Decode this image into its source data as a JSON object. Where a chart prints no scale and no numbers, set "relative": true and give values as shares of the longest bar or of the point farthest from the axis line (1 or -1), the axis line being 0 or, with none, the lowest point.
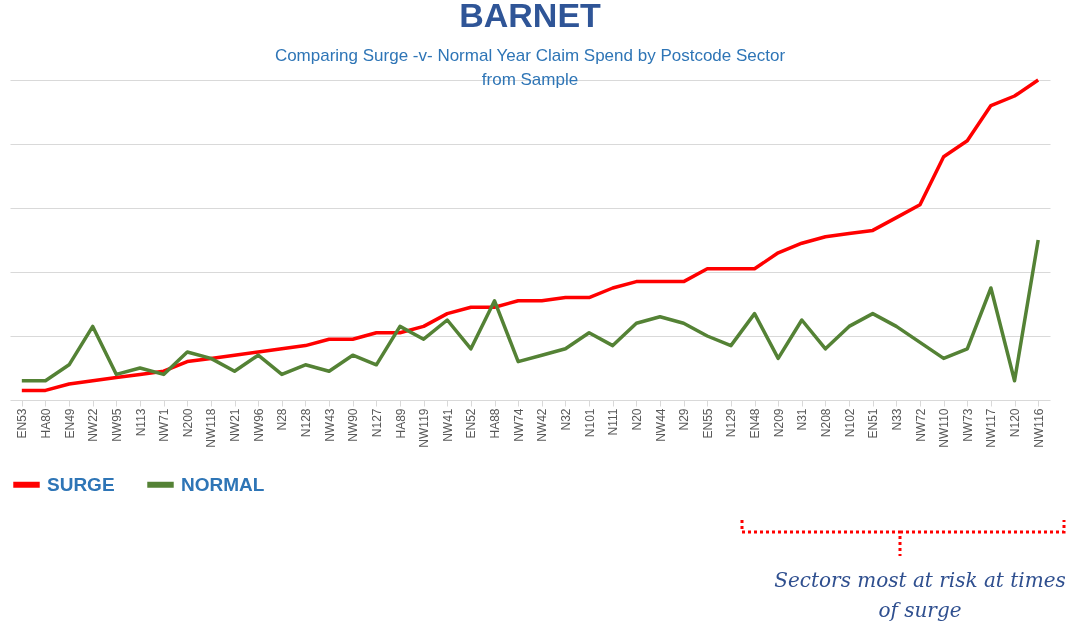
{
  "chart_data": {
    "type": "line",
    "title": "BARNET",
    "subtitle": "Comparing Surge -v- Normal Year Claim Spend by Postcode Sector from Sample",
    "relative": true,
    "grid": "y",
    "legend": "bottom",
    "line_style": "solid",
    "marker": "none",
    "categories": [
      "EN53",
      "HA80",
      "EN49",
      "NW22",
      "NW95",
      "N113",
      "NW71",
      "N200",
      "NW118",
      "NW21",
      "NW96",
      "N28",
      "N128",
      "NW43",
      "NW90",
      "N127",
      "HA89",
      "NW119",
      "NW41",
      "EN52",
      "HA88",
      "NW74",
      "NW42",
      "N32",
      "N101",
      "N111",
      "N20",
      "NW44",
      "N29",
      "EN55",
      "N129",
      "EN48",
      "N209",
      "N31",
      "N208",
      "N102",
      "EN51",
      "N33",
      "NW72",
      "NW110",
      "NW73",
      "NW117",
      "N120",
      "NW116"
    ],
    "series": [
      {
        "name": "SURGE",
        "color": "#ff0000",
        "values": [
          0.03,
          0.03,
          0.05,
          0.06,
          0.07,
          0.08,
          0.09,
          0.12,
          0.13,
          0.14,
          0.15,
          0.16,
          0.17,
          0.19,
          0.19,
          0.21,
          0.21,
          0.23,
          0.27,
          0.29,
          0.29,
          0.31,
          0.31,
          0.32,
          0.32,
          0.35,
          0.37,
          0.37,
          0.37,
          0.41,
          0.41,
          0.41,
          0.46,
          0.49,
          0.51,
          0.52,
          0.53,
          0.57,
          0.61,
          0.76,
          0.81,
          0.92,
          0.95,
          1
        ]
      },
      {
        "name": "NORMAL",
        "color": "#548235",
        "values": [
          0.06,
          0.06,
          0.11,
          0.23,
          0.08,
          0.1,
          0.08,
          0.15,
          0.13,
          0.09,
          0.14,
          0.08,
          0.11,
          0.09,
          0.14,
          0.11,
          0.23,
          0.19,
          0.25,
          0.16,
          0.31,
          0.12,
          0.14,
          0.16,
          0.21,
          0.17,
          0.24,
          0.26,
          0.24,
          0.2,
          0.17,
          0.27,
          0.13,
          0.25,
          0.16,
          0.23,
          0.27,
          0.23,
          0.18,
          0.13,
          0.16,
          0.35,
          0.06,
          0.5
        ]
      }
    ],
    "annotations": [
      "Sectors most at risk at times of surge"
    ]
  }
}
